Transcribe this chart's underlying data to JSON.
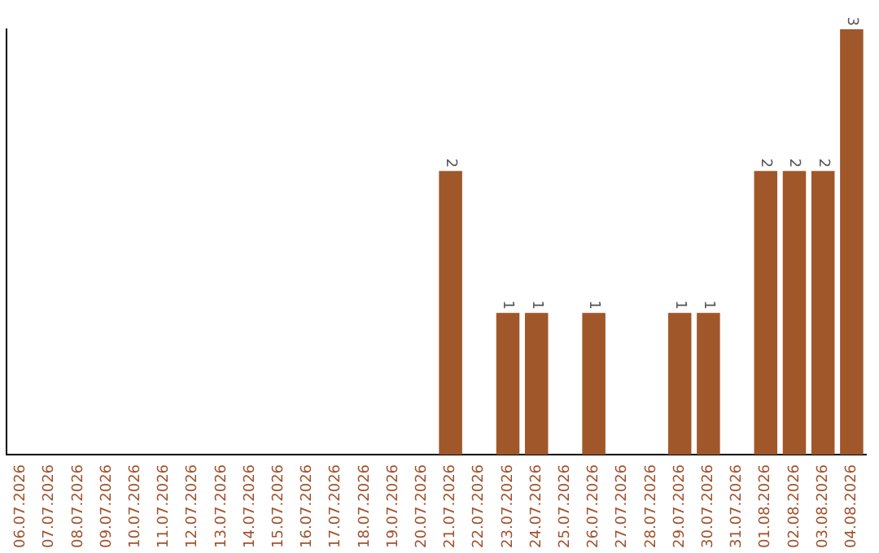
{
  "chart_data": {
    "type": "bar",
    "categories": [
      "06.07.2026",
      "07.07.2026",
      "08.07.2026",
      "09.07.2026",
      "10.07.2026",
      "11.07.2026",
      "12.07.2026",
      "13.07.2026",
      "14.07.2026",
      "15.07.2026",
      "16.07.2026",
      "17.07.2026",
      "18.07.2026",
      "19.07.2026",
      "20.07.2026",
      "21.07.2026",
      "22.07.2026",
      "23.07.2026",
      "24.07.2026",
      "25.07.2026",
      "26.07.2026",
      "27.07.2026",
      "28.07.2026",
      "29.07.2026",
      "30.07.2026",
      "31.07.2026",
      "01.08.2026",
      "02.08.2026",
      "03.08.2026",
      "04.08.2026"
    ],
    "values": [
      null,
      null,
      null,
      null,
      null,
      null,
      null,
      null,
      null,
      null,
      null,
      null,
      null,
      null,
      null,
      2,
      null,
      1,
      1,
      null,
      1,
      null,
      null,
      1,
      1,
      null,
      2,
      2,
      2,
      3
    ],
    "data_labels": true,
    "color": "#a0572a",
    "grid": false,
    "legend": false,
    "tick_labels": "x"
  }
}
